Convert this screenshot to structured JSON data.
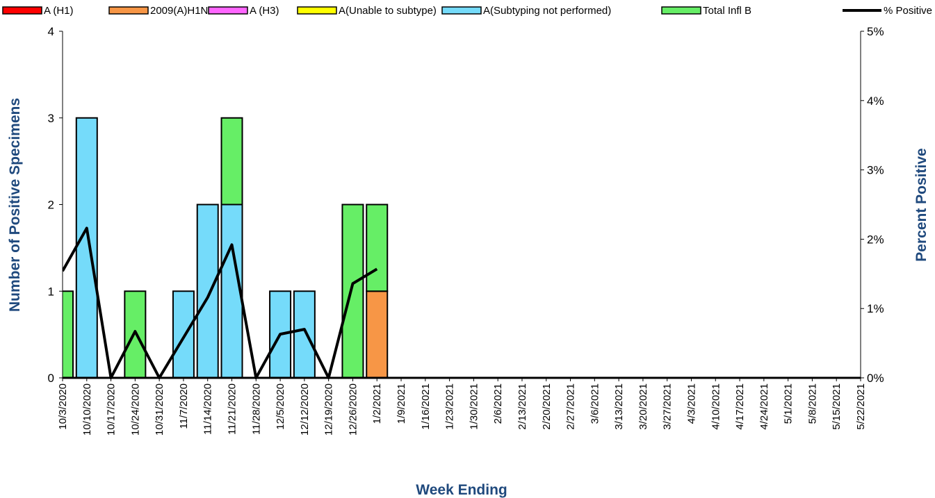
{
  "chart_data": {
    "type": "bar",
    "categories": [
      "10/3/2020",
      "10/10/2020",
      "10/17/2020",
      "10/24/2020",
      "10/31/2020",
      "11/7/2020",
      "11/14/2020",
      "11/21/2020",
      "11/28/2020",
      "12/5/2020",
      "12/12/2020",
      "12/19/2020",
      "12/26/2020",
      "1/2/2021",
      "1/9/2021",
      "1/16/2021",
      "1/23/2021",
      "1/30/2021",
      "2/6/2021",
      "2/13/2021",
      "2/20/2021",
      "2/27/2021",
      "3/6/2021",
      "3/13/2021",
      "3/20/2021",
      "3/27/2021",
      "4/3/2021",
      "4/10/2021",
      "4/17/2021",
      "4/24/2021",
      "5/1/2021",
      "5/8/2021",
      "5/15/2021",
      "5/22/2021"
    ],
    "series": [
      {
        "name": "A (H1)",
        "color": "#ff0000",
        "values": [
          0,
          0,
          0,
          0,
          0,
          0,
          0,
          0,
          0,
          0,
          0,
          0,
          0,
          0,
          0,
          0,
          0,
          0,
          0,
          0,
          0,
          0,
          0,
          0,
          0,
          0,
          0,
          0,
          0,
          0,
          0,
          0,
          0,
          0
        ]
      },
      {
        "name": "2009(A)H1N1",
        "color": "#f79646",
        "values": [
          0,
          0,
          0,
          0,
          0,
          0,
          0,
          0,
          0,
          0,
          0,
          0,
          0,
          1,
          0,
          0,
          0,
          0,
          0,
          0,
          0,
          0,
          0,
          0,
          0,
          0,
          0,
          0,
          0,
          0,
          0,
          0,
          0,
          0
        ]
      },
      {
        "name": "A (H3)",
        "color": "#ff66ff",
        "values": [
          0,
          0,
          0,
          0,
          0,
          0,
          0,
          0,
          0,
          0,
          0,
          0,
          0,
          0,
          0,
          0,
          0,
          0,
          0,
          0,
          0,
          0,
          0,
          0,
          0,
          0,
          0,
          0,
          0,
          0,
          0,
          0,
          0,
          0
        ]
      },
      {
        "name": "A(Unable to subtype)",
        "color": "#ffff00",
        "values": [
          0,
          0,
          0,
          0,
          0,
          0,
          0,
          0,
          0,
          0,
          0,
          0,
          0,
          0,
          0,
          0,
          0,
          0,
          0,
          0,
          0,
          0,
          0,
          0,
          0,
          0,
          0,
          0,
          0,
          0,
          0,
          0,
          0,
          0
        ]
      },
      {
        "name": "A(Subtyping not performed)",
        "color": "#75dbfa",
        "values": [
          0,
          3,
          0,
          0,
          0,
          1,
          2,
          2,
          0,
          1,
          1,
          0,
          0,
          0,
          0,
          0,
          0,
          0,
          0,
          0,
          0,
          0,
          0,
          0,
          0,
          0,
          0,
          0,
          0,
          0,
          0,
          0,
          0,
          0
        ]
      },
      {
        "name": "Total Infl B",
        "color": "#66ee66",
        "values": [
          1,
          0,
          0,
          1,
          0,
          0,
          0,
          1,
          0,
          0,
          0,
          0,
          2,
          1,
          0,
          0,
          0,
          0,
          0,
          0,
          0,
          0,
          0,
          0,
          0,
          0,
          0,
          0,
          0,
          0,
          0,
          0,
          0,
          0
        ]
      },
      {
        "name": "% Positive",
        "color": "#000000",
        "type": "line",
        "axis": "y2",
        "values": [
          1.54,
          2.16,
          0,
          0.67,
          0,
          0.58,
          1.16,
          1.92,
          0,
          0.63,
          0.7,
          0,
          1.36,
          1.57,
          null,
          null,
          null,
          null,
          null,
          null,
          null,
          null,
          null,
          null,
          null,
          null,
          null,
          null,
          null,
          null,
          null,
          null,
          null,
          null
        ]
      }
    ],
    "stacked": true,
    "ylim": [
      0,
      4
    ],
    "yticks": [
      0,
      1,
      2,
      3,
      4
    ],
    "y2lim": [
      0,
      5
    ],
    "y2ticks": [
      {
        "value": 0,
        "label": "0%"
      },
      {
        "value": 1,
        "label": "1%"
      },
      {
        "value": 2,
        "label": "2%"
      },
      {
        "value": 3,
        "label": "3%"
      },
      {
        "value": 4,
        "label": "4%"
      },
      {
        "value": 5,
        "label": "5%"
      }
    ],
    "ylabel": "Number of  Positive Specimens",
    "y2label": "Percent Positive",
    "xlabel": "Week Ending",
    "legend": "top",
    "grid": false
  }
}
